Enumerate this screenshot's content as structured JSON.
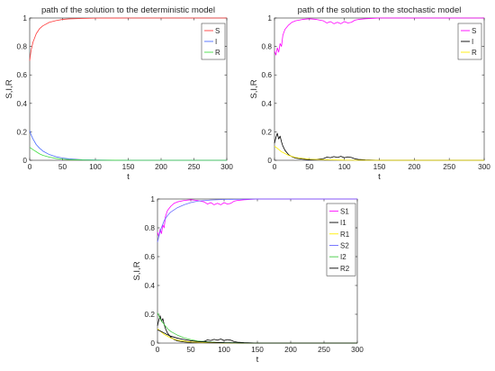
{
  "chart_data": [
    {
      "type": "line",
      "title": "path of the solution to the deterministic model",
      "xlabel": "t",
      "ylabel": "S,I,R",
      "xlim": [
        0,
        300
      ],
      "ylim": [
        0,
        1
      ],
      "xticks": [
        0,
        50,
        100,
        150,
        200,
        250,
        300
      ],
      "yticks": [
        0,
        0.2,
        0.4,
        0.6,
        0.8,
        1
      ],
      "ytick_labels": [
        "0",
        "0.2",
        "0.4",
        "0.6",
        "0.8",
        "1"
      ],
      "grid": false,
      "legend_position": "top-right",
      "series": [
        {
          "name": "S",
          "color": "#ff3b3b",
          "x": [
            0,
            2,
            5,
            10,
            15,
            20,
            30,
            40,
            50,
            60,
            80,
            100,
            150,
            200,
            300
          ],
          "y": [
            0.7,
            0.77,
            0.83,
            0.89,
            0.925,
            0.945,
            0.97,
            0.982,
            0.99,
            0.994,
            0.997,
            0.999,
            1.0,
            1.0,
            1.0
          ]
        },
        {
          "name": "I",
          "color": "#4a6cff",
          "x": [
            0,
            2,
            5,
            10,
            15,
            20,
            30,
            40,
            50,
            60,
            80,
            100,
            150,
            200,
            300
          ],
          "y": [
            0.21,
            0.18,
            0.15,
            0.11,
            0.085,
            0.065,
            0.04,
            0.025,
            0.016,
            0.01,
            0.004,
            0.002,
            0.0,
            0.0,
            0.0
          ]
        },
        {
          "name": "R",
          "color": "#44dd44",
          "x": [
            0,
            2,
            5,
            10,
            15,
            20,
            30,
            40,
            50,
            60,
            80,
            100,
            150,
            200,
            300
          ],
          "y": [
            0.09,
            0.085,
            0.075,
            0.06,
            0.045,
            0.035,
            0.022,
            0.013,
            0.008,
            0.005,
            0.002,
            0.001,
            0.0,
            0.0,
            0.0
          ]
        }
      ]
    },
    {
      "type": "line",
      "title": "path of the solution to the stochastic model",
      "xlabel": "t",
      "ylabel": "S,I,R",
      "xlim": [
        0,
        300
      ],
      "ylim": [
        0,
        1
      ],
      "xticks": [
        0,
        50,
        100,
        150,
        200,
        250,
        300
      ],
      "yticks": [
        0,
        0.2,
        0.4,
        0.6,
        0.8,
        1
      ],
      "ytick_labels": [
        "0",
        "0.2",
        "0.4",
        "0.6",
        "0.8",
        "1"
      ],
      "grid": false,
      "legend_position": "top-right",
      "series": [
        {
          "name": "S",
          "color": "#ff00ff",
          "x": [
            0,
            2,
            4,
            6,
            8,
            10,
            12,
            15,
            20,
            25,
            30,
            40,
            50,
            60,
            70,
            75,
            80,
            85,
            90,
            95,
            100,
            105,
            110,
            115,
            120,
            130,
            150,
            200,
            300
          ],
          "y": [
            0.77,
            0.74,
            0.79,
            0.76,
            0.82,
            0.8,
            0.88,
            0.92,
            0.95,
            0.97,
            0.98,
            0.99,
            0.995,
            0.99,
            0.98,
            0.965,
            0.975,
            0.96,
            0.97,
            0.96,
            0.975,
            0.965,
            0.97,
            0.985,
            0.99,
            0.995,
            1.0,
            1.0,
            1.0
          ]
        },
        {
          "name": "I",
          "color": "#000000",
          "x": [
            0,
            2,
            4,
            6,
            8,
            10,
            12,
            15,
            20,
            25,
            30,
            40,
            50,
            60,
            70,
            75,
            80,
            85,
            90,
            95,
            100,
            105,
            110,
            115,
            120,
            130,
            150,
            200,
            300
          ],
          "y": [
            0.12,
            0.16,
            0.19,
            0.15,
            0.17,
            0.13,
            0.1,
            0.07,
            0.04,
            0.025,
            0.015,
            0.008,
            0.004,
            0.006,
            0.012,
            0.022,
            0.018,
            0.026,
            0.02,
            0.028,
            0.018,
            0.024,
            0.02,
            0.01,
            0.006,
            0.003,
            0.0,
            0.0,
            0.0
          ]
        },
        {
          "name": "R",
          "color": "#ffee00",
          "x": [
            0,
            5,
            10,
            20,
            30,
            50,
            80,
            100,
            150,
            200,
            300
          ],
          "y": [
            0.1,
            0.08,
            0.06,
            0.035,
            0.02,
            0.008,
            0.003,
            0.001,
            0.0,
            0.0,
            0.0
          ]
        }
      ]
    },
    {
      "type": "line",
      "title": "",
      "xlabel": "t",
      "ylabel": "S,I,R",
      "xlim": [
        0,
        300
      ],
      "ylim": [
        0,
        1
      ],
      "xticks": [
        0,
        50,
        100,
        150,
        200,
        250,
        300
      ],
      "yticks": [
        0,
        0.2,
        0.4,
        0.6,
        0.8,
        1
      ],
      "ytick_labels": [
        "0",
        "0.2",
        "0.4",
        "0.6",
        "0.8",
        "1"
      ],
      "grid": false,
      "legend_position": "top-right",
      "series": [
        {
          "name": "S1",
          "color": "#ff00ff",
          "x": [
            0,
            2,
            4,
            6,
            8,
            10,
            12,
            15,
            20,
            25,
            30,
            40,
            50,
            60,
            70,
            75,
            80,
            85,
            90,
            95,
            100,
            105,
            110,
            115,
            120,
            130,
            150,
            200,
            300
          ],
          "y": [
            0.77,
            0.74,
            0.79,
            0.76,
            0.82,
            0.8,
            0.88,
            0.92,
            0.95,
            0.97,
            0.98,
            0.99,
            0.995,
            0.99,
            0.98,
            0.965,
            0.975,
            0.96,
            0.97,
            0.96,
            0.975,
            0.965,
            0.97,
            0.985,
            0.99,
            0.995,
            1.0,
            1.0,
            1.0
          ]
        },
        {
          "name": "I1",
          "color": "#000000",
          "x": [
            0,
            2,
            4,
            6,
            8,
            10,
            12,
            15,
            20,
            25,
            30,
            40,
            50,
            60,
            70,
            75,
            80,
            85,
            90,
            95,
            100,
            105,
            110,
            115,
            120,
            130,
            150,
            200,
            300
          ],
          "y": [
            0.12,
            0.16,
            0.19,
            0.15,
            0.17,
            0.13,
            0.1,
            0.07,
            0.04,
            0.025,
            0.015,
            0.008,
            0.004,
            0.006,
            0.012,
            0.022,
            0.018,
            0.026,
            0.02,
            0.028,
            0.018,
            0.024,
            0.02,
            0.01,
            0.006,
            0.003,
            0.0,
            0.0,
            0.0
          ]
        },
        {
          "name": "R1",
          "color": "#ffee00",
          "x": [
            0,
            5,
            10,
            20,
            30,
            50,
            80,
            100,
            150,
            200,
            300
          ],
          "y": [
            0.1,
            0.08,
            0.06,
            0.035,
            0.02,
            0.008,
            0.003,
            0.001,
            0.0,
            0.0,
            0.0
          ]
        },
        {
          "name": "S2",
          "color": "#6a6aff",
          "x": [
            0,
            2,
            5,
            10,
            15,
            20,
            30,
            40,
            50,
            60,
            80,
            100,
            150,
            200,
            300
          ],
          "y": [
            0.7,
            0.74,
            0.79,
            0.85,
            0.885,
            0.91,
            0.94,
            0.96,
            0.975,
            0.985,
            0.993,
            0.997,
            1.0,
            1.0,
            1.0
          ]
        },
        {
          "name": "I2",
          "color": "#44cc44",
          "x": [
            0,
            2,
            5,
            10,
            15,
            20,
            30,
            40,
            50,
            60,
            80,
            100,
            150,
            200,
            300
          ],
          "y": [
            0.21,
            0.19,
            0.16,
            0.13,
            0.1,
            0.08,
            0.055,
            0.036,
            0.024,
            0.015,
            0.007,
            0.003,
            0.0,
            0.0,
            0.0
          ]
        },
        {
          "name": "R2",
          "color": "#000000",
          "x": [
            0,
            2,
            5,
            10,
            15,
            20,
            30,
            40,
            50,
            60,
            80,
            100,
            150,
            200,
            300
          ],
          "y": [
            0.09,
            0.088,
            0.082,
            0.07,
            0.058,
            0.048,
            0.034,
            0.024,
            0.016,
            0.011,
            0.005,
            0.002,
            0.0,
            0.0,
            0.0
          ]
        }
      ]
    }
  ]
}
